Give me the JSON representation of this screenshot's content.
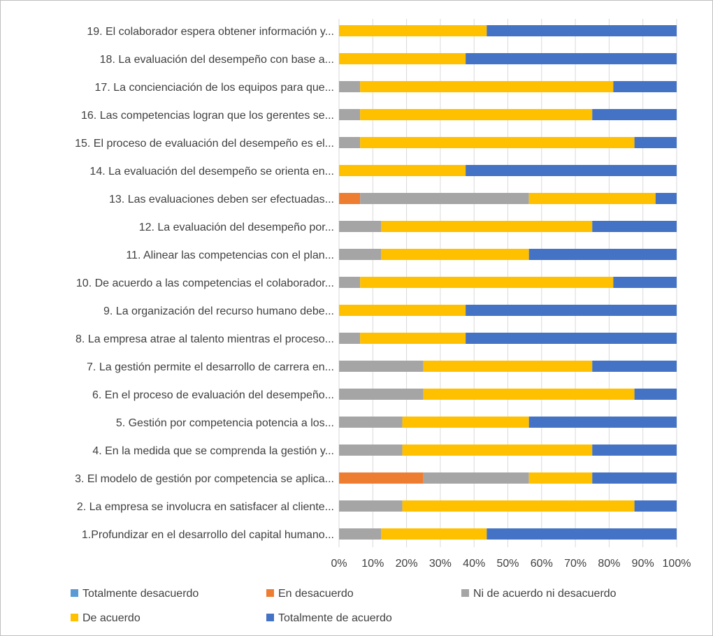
{
  "chart_data": {
    "type": "bar",
    "orientation": "horizontal",
    "stacked": "percent",
    "title": "",
    "xlabel": "",
    "ylabel": "",
    "xlim": [
      0,
      100
    ],
    "x_ticks": [
      "0%",
      "10%",
      "20%",
      "30%",
      "40%",
      "50%",
      "60%",
      "70%",
      "80%",
      "90%",
      "100%"
    ],
    "grid": true,
    "legend_position": "bottom",
    "categories": [
      "19. El colaborador espera obtener información y...",
      "18. La evaluación del desempeño con base a...",
      "17. La concienciación de los equipos para que...",
      "16. Las competencias logran que los gerentes se...",
      "15. El proceso de evaluación del desempeño es el...",
      "14. La evaluación del desempeño se orienta en...",
      "13. Las evaluaciones deben ser efectuadas...",
      "12. La evaluación del desempeño por...",
      "11. Alinear las competencias con el plan...",
      "10. De acuerdo a las competencias el colaborador...",
      "9. La organización del recurso humano debe...",
      "8. La empresa atrae al talento mientras el proceso...",
      "7. La gestión permite el desarrollo de carrera en...",
      "6. En el proceso de evaluación del desempeño...",
      "5. Gestión por competencia potencia a los...",
      "4. En la medida que se comprenda la gestión y...",
      "3. El modelo de gestión por competencia se aplica...",
      "2. La empresa se involucra en satisfacer al cliente...",
      "1.Profundizar en el desarrollo del capital humano..."
    ],
    "series": [
      {
        "name": "Totalmente desacuerdo",
        "color": "#5b9bd5",
        "values": [
          0,
          0,
          0,
          0,
          0,
          0,
          0,
          0,
          0,
          0,
          0,
          0,
          0,
          0,
          0,
          0,
          0,
          0,
          0
        ]
      },
      {
        "name": "En desacuerdo",
        "color": "#ed7d31",
        "values": [
          0,
          0,
          0,
          0,
          0,
          0,
          6.25,
          0,
          0,
          0,
          0,
          0,
          0,
          0,
          0,
          0,
          25,
          0,
          0
        ]
      },
      {
        "name": "Ni de acuerdo ni desacuerdo",
        "color": "#a5a5a5",
        "values": [
          0,
          0,
          6.25,
          6.25,
          6.25,
          0,
          50,
          12.5,
          12.5,
          6.25,
          0,
          6.25,
          25,
          25,
          18.75,
          18.75,
          31.25,
          18.75,
          12.5
        ]
      },
      {
        "name": "De acuerdo",
        "color": "#ffc000",
        "values": [
          43.75,
          37.5,
          75,
          68.75,
          81.25,
          37.5,
          37.5,
          62.5,
          43.75,
          75,
          37.5,
          31.25,
          50,
          62.5,
          37.5,
          56.25,
          18.75,
          68.75,
          31.25
        ]
      },
      {
        "name": "Totalmente de acuerdo",
        "color": "#4472c4",
        "values": [
          56.25,
          62.5,
          18.75,
          25,
          12.5,
          62.5,
          6.25,
          25,
          43.75,
          18.75,
          62.5,
          62.5,
          25,
          12.5,
          43.75,
          25,
          25,
          12.5,
          56.25
        ]
      }
    ]
  }
}
